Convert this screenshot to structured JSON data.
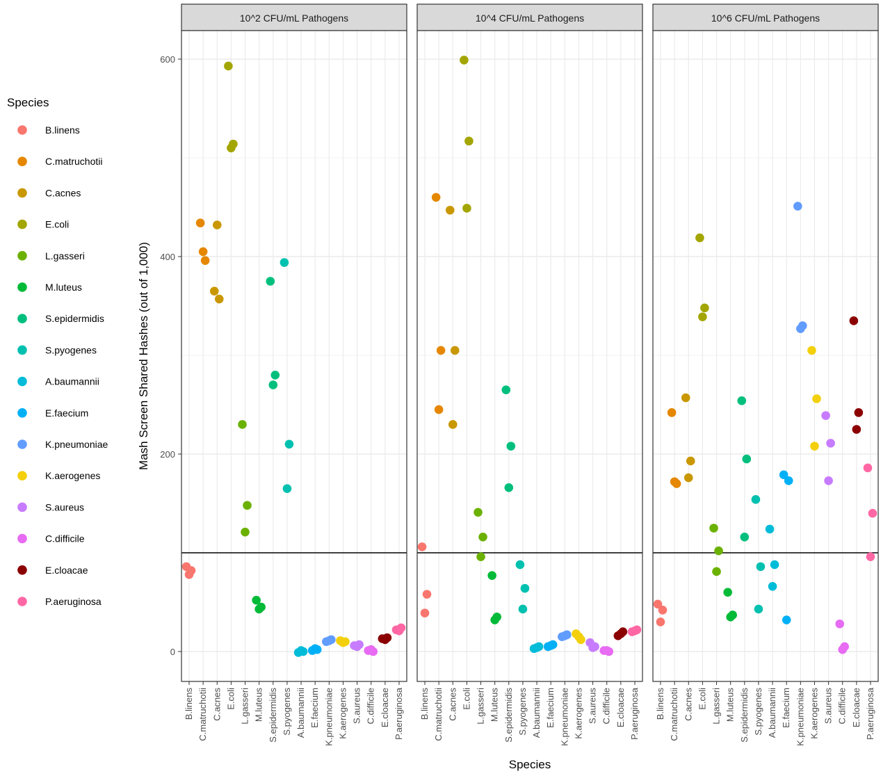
{
  "chart_data": {
    "type": "scatter",
    "title": "",
    "xlabel": "Species",
    "ylabel": "Mash Screen Shared Hashes (out of 1,000)",
    "ylim": [
      -30,
      630
    ],
    "yticks": [
      0,
      200,
      400,
      600
    ],
    "grid": true,
    "threshold": 100,
    "legend": {
      "title": "Species",
      "position": "left"
    },
    "categories": [
      "B.linens",
      "C.matruchotii",
      "C.acnes",
      "E.coli",
      "L.gasseri",
      "M.luteus",
      "S.epidermidis",
      "S.pyogenes",
      "A.baumannii",
      "E.faecium",
      "K.pneumoniae",
      "K.aerogenes",
      "S.aureus",
      "C.difficile",
      "E.cloacae",
      "P.aeruginosa"
    ],
    "colors": [
      "#F8766D",
      "#E58700",
      "#C99800",
      "#A3A500",
      "#6BB100",
      "#00BA38",
      "#00BF7D",
      "#00C0AF",
      "#00BCD8",
      "#00B0F6",
      "#619CFF",
      "#F3D00B",
      "#C77CFF",
      "#E76BF3",
      "#8B0000",
      "#FF67A4"
    ],
    "panels": [
      {
        "label": "10^2 CFU/mL Pathogens",
        "points": [
          {
            "s": 0,
            "y": 86
          },
          {
            "s": 0,
            "y": 82
          },
          {
            "s": 0,
            "y": 78
          },
          {
            "s": 1,
            "y": 434
          },
          {
            "s": 1,
            "y": 396
          },
          {
            "s": 1,
            "y": 405
          },
          {
            "s": 2,
            "y": 365
          },
          {
            "s": 2,
            "y": 357
          },
          {
            "s": 2,
            "y": 432
          },
          {
            "s": 3,
            "y": 593
          },
          {
            "s": 3,
            "y": 514
          },
          {
            "s": 3,
            "y": 510
          },
          {
            "s": 4,
            "y": 230
          },
          {
            "s": 4,
            "y": 148
          },
          {
            "s": 4,
            "y": 121
          },
          {
            "s": 5,
            "y": 52
          },
          {
            "s": 5,
            "y": 45
          },
          {
            "s": 5,
            "y": 43
          },
          {
            "s": 6,
            "y": 375
          },
          {
            "s": 6,
            "y": 280
          },
          {
            "s": 6,
            "y": 270
          },
          {
            "s": 7,
            "y": 394
          },
          {
            "s": 7,
            "y": 210
          },
          {
            "s": 7,
            "y": 165
          },
          {
            "s": 8,
            "y": -1
          },
          {
            "s": 8,
            "y": 0
          },
          {
            "s": 8,
            "y": 1
          },
          {
            "s": 9,
            "y": 1
          },
          {
            "s": 9,
            "y": 2
          },
          {
            "s": 9,
            "y": 3
          },
          {
            "s": 10,
            "y": 10
          },
          {
            "s": 10,
            "y": 12
          },
          {
            "s": 10,
            "y": 11
          },
          {
            "s": 11,
            "y": 11
          },
          {
            "s": 11,
            "y": 10
          },
          {
            "s": 11,
            "y": 9
          },
          {
            "s": 12,
            "y": 6
          },
          {
            "s": 12,
            "y": 7
          },
          {
            "s": 12,
            "y": 5
          },
          {
            "s": 13,
            "y": 1
          },
          {
            "s": 13,
            "y": 0
          },
          {
            "s": 13,
            "y": 2
          },
          {
            "s": 14,
            "y": 13
          },
          {
            "s": 14,
            "y": 14
          },
          {
            "s": 14,
            "y": 12
          },
          {
            "s": 15,
            "y": 22
          },
          {
            "s": 15,
            "y": 24
          },
          {
            "s": 15,
            "y": 21
          }
        ]
      },
      {
        "label": "10^4 CFU/mL Pathogens",
        "points": [
          {
            "s": 0,
            "y": 106
          },
          {
            "s": 0,
            "y": 58
          },
          {
            "s": 0,
            "y": 39
          },
          {
            "s": 1,
            "y": 460
          },
          {
            "s": 1,
            "y": 305
          },
          {
            "s": 1,
            "y": 245
          },
          {
            "s": 2,
            "y": 447
          },
          {
            "s": 2,
            "y": 305
          },
          {
            "s": 2,
            "y": 230
          },
          {
            "s": 3,
            "y": 599
          },
          {
            "s": 3,
            "y": 517
          },
          {
            "s": 3,
            "y": 449
          },
          {
            "s": 4,
            "y": 141
          },
          {
            "s": 4,
            "y": 116
          },
          {
            "s": 4,
            "y": 96
          },
          {
            "s": 5,
            "y": 77
          },
          {
            "s": 5,
            "y": 35
          },
          {
            "s": 5,
            "y": 32
          },
          {
            "s": 6,
            "y": 265
          },
          {
            "s": 6,
            "y": 208
          },
          {
            "s": 6,
            "y": 166
          },
          {
            "s": 7,
            "y": 88
          },
          {
            "s": 7,
            "y": 64
          },
          {
            "s": 7,
            "y": 43
          },
          {
            "s": 8,
            "y": 3
          },
          {
            "s": 8,
            "y": 5
          },
          {
            "s": 8,
            "y": 4
          },
          {
            "s": 9,
            "y": 5
          },
          {
            "s": 9,
            "y": 7
          },
          {
            "s": 9,
            "y": 6
          },
          {
            "s": 10,
            "y": 15
          },
          {
            "s": 10,
            "y": 17
          },
          {
            "s": 10,
            "y": 16
          },
          {
            "s": 11,
            "y": 18
          },
          {
            "s": 11,
            "y": 12
          },
          {
            "s": 11,
            "y": 15
          },
          {
            "s": 12,
            "y": 9
          },
          {
            "s": 12,
            "y": 5
          },
          {
            "s": 12,
            "y": 4
          },
          {
            "s": 13,
            "y": 1
          },
          {
            "s": 13,
            "y": 0
          },
          {
            "s": 13,
            "y": 1
          },
          {
            "s": 14,
            "y": 16
          },
          {
            "s": 14,
            "y": 20
          },
          {
            "s": 14,
            "y": 18
          },
          {
            "s": 15,
            "y": 20
          },
          {
            "s": 15,
            "y": 22
          },
          {
            "s": 15,
            "y": 21
          }
        ]
      },
      {
        "label": "10^6 CFU/mL Pathogens",
        "points": [
          {
            "s": 0,
            "y": 48
          },
          {
            "s": 0,
            "y": 42
          },
          {
            "s": 0,
            "y": 30
          },
          {
            "s": 1,
            "y": 242
          },
          {
            "s": 1,
            "y": 170
          },
          {
            "s": 1,
            "y": 172
          },
          {
            "s": 2,
            "y": 257
          },
          {
            "s": 2,
            "y": 193
          },
          {
            "s": 2,
            "y": 176
          },
          {
            "s": 3,
            "y": 419
          },
          {
            "s": 3,
            "y": 348
          },
          {
            "s": 3,
            "y": 339
          },
          {
            "s": 4,
            "y": 125
          },
          {
            "s": 4,
            "y": 102
          },
          {
            "s": 4,
            "y": 81
          },
          {
            "s": 5,
            "y": 60
          },
          {
            "s": 5,
            "y": 37
          },
          {
            "s": 5,
            "y": 35
          },
          {
            "s": 6,
            "y": 254
          },
          {
            "s": 6,
            "y": 195
          },
          {
            "s": 6,
            "y": 116
          },
          {
            "s": 7,
            "y": 154
          },
          {
            "s": 7,
            "y": 86
          },
          {
            "s": 7,
            "y": 43
          },
          {
            "s": 8,
            "y": 124
          },
          {
            "s": 8,
            "y": 88
          },
          {
            "s": 8,
            "y": 66
          },
          {
            "s": 9,
            "y": 179
          },
          {
            "s": 9,
            "y": 173
          },
          {
            "s": 9,
            "y": 32
          },
          {
            "s": 10,
            "y": 451
          },
          {
            "s": 10,
            "y": 330
          },
          {
            "s": 10,
            "y": 327
          },
          {
            "s": 11,
            "y": 305
          },
          {
            "s": 11,
            "y": 256
          },
          {
            "s": 11,
            "y": 208
          },
          {
            "s": 12,
            "y": 239
          },
          {
            "s": 12,
            "y": 211
          },
          {
            "s": 12,
            "y": 173
          },
          {
            "s": 13,
            "y": 28
          },
          {
            "s": 13,
            "y": 5
          },
          {
            "s": 13,
            "y": 2
          },
          {
            "s": 14,
            "y": 335
          },
          {
            "s": 14,
            "y": 242
          },
          {
            "s": 14,
            "y": 225
          },
          {
            "s": 15,
            "y": 186
          },
          {
            "s": 15,
            "y": 140
          },
          {
            "s": 15,
            "y": 96
          }
        ]
      }
    ]
  }
}
